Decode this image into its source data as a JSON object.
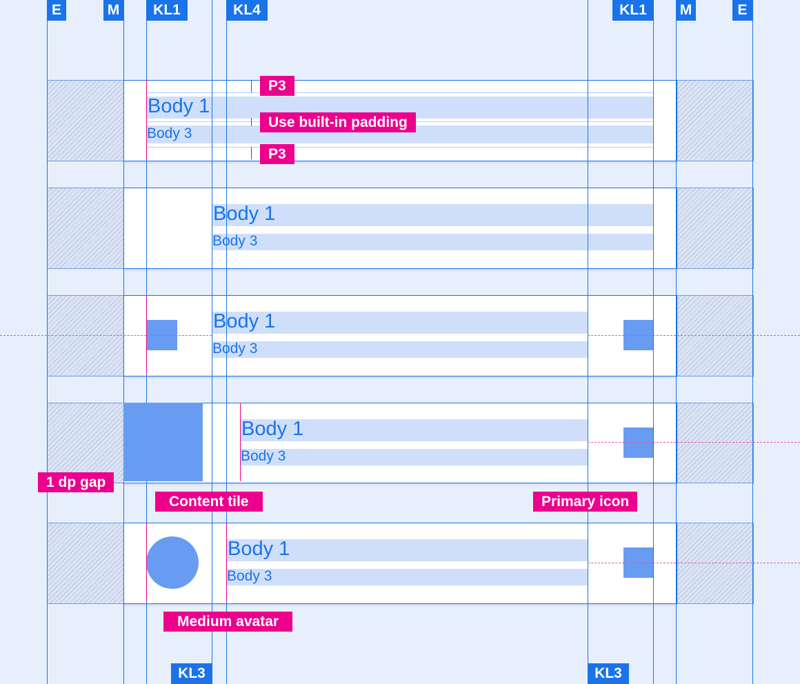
{
  "keylines": {
    "top": [
      "E",
      "M",
      "KL1",
      "KL4",
      "KL1",
      "M",
      "E"
    ],
    "bottom": [
      "KL3",
      "KL3"
    ]
  },
  "rows": [
    {
      "primary": "Body 1",
      "secondary": "Body 3"
    },
    {
      "primary": "Body 1",
      "secondary": "Body 3"
    },
    {
      "primary": "Body 1",
      "secondary": "Body 3"
    },
    {
      "primary": "Body 1",
      "secondary": "Body 3"
    },
    {
      "primary": "Body 1",
      "secondary": "Body 3"
    }
  ],
  "annotations": {
    "p3_top": "P3",
    "padding": "Use built-in padding",
    "p3_bottom": "P3",
    "gap": "1 dp gap",
    "content_tile": "Content tile",
    "primary_icon": "Primary icon",
    "medium_avatar": "Medium avatar"
  },
  "colors": {
    "keyline": "#1a73e8",
    "annotation": "#ec008c",
    "placeholder": "#689cf2",
    "text_band": "#cfdffa"
  }
}
